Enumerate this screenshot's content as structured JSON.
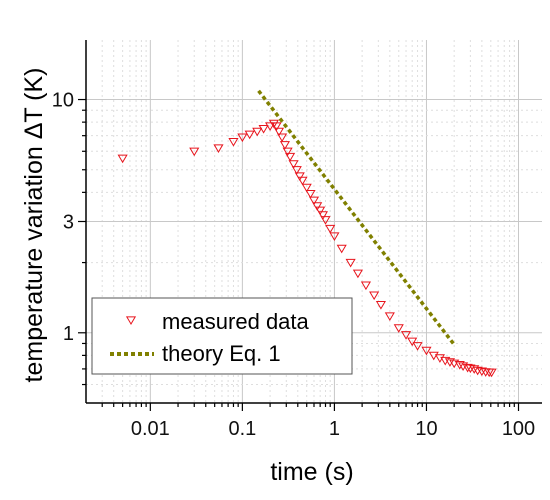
{
  "chart_data": {
    "type": "scatter",
    "xlabel": "time (s)",
    "ylabel": "temperature variation ΔT (K)",
    "x_scale": "log",
    "y_scale": "log",
    "xlim": [
      0.002,
      180
    ],
    "ylim": [
      0.5,
      18
    ],
    "x_ticks": [
      0.01,
      0.1,
      1,
      10,
      100
    ],
    "x_tick_labels": [
      "0.01",
      "0.1",
      "1",
      "10",
      "100"
    ],
    "y_ticks": [
      1,
      3,
      10
    ],
    "y_tick_labels": [
      "1",
      "3",
      "10"
    ],
    "grid": true,
    "legend_position": "bottom-left",
    "colors": {
      "measured": "#e8141c",
      "theory": "#808000"
    },
    "series": [
      {
        "name": "measured data",
        "kind": "scatter",
        "marker": "triangle-down-open",
        "x": [
          0.005,
          0.03,
          0.055,
          0.08,
          0.1,
          0.12,
          0.145,
          0.17,
          0.2,
          0.22,
          0.235,
          0.25,
          0.27,
          0.29,
          0.31,
          0.33,
          0.36,
          0.39,
          0.42,
          0.45,
          0.5,
          0.55,
          0.6,
          0.65,
          0.7,
          0.75,
          0.8,
          0.9,
          1.0,
          1.2,
          1.5,
          1.8,
          2.2,
          2.7,
          3.2,
          4.0,
          5.0,
          6.0,
          7.0,
          8.0,
          10.0,
          12.0,
          14.0,
          16.0,
          18.0,
          20.0,
          23.0,
          25.0,
          28.0,
          30.0,
          33.0,
          36.0,
          40.0,
          44.0,
          48.0,
          51.0
        ],
        "y": [
          5.6,
          6.0,
          6.2,
          6.6,
          6.9,
          7.1,
          7.3,
          7.5,
          7.7,
          7.9,
          7.7,
          7.3,
          6.9,
          6.4,
          6.0,
          5.7,
          5.3,
          5.0,
          4.7,
          4.5,
          4.2,
          3.95,
          3.7,
          3.5,
          3.35,
          3.2,
          3.05,
          2.8,
          2.6,
          2.3,
          2.0,
          1.8,
          1.6,
          1.45,
          1.32,
          1.18,
          1.05,
          0.98,
          0.92,
          0.88,
          0.84,
          0.8,
          0.78,
          0.76,
          0.75,
          0.74,
          0.73,
          0.72,
          0.71,
          0.705,
          0.7,
          0.69,
          0.685,
          0.68,
          0.678,
          0.677
        ]
      },
      {
        "name": "theory Eq. 1",
        "kind": "line",
        "dash": "dotted",
        "x": [
          0.15,
          20.0
        ],
        "y": [
          10.9,
          0.89
        ]
      }
    ]
  }
}
